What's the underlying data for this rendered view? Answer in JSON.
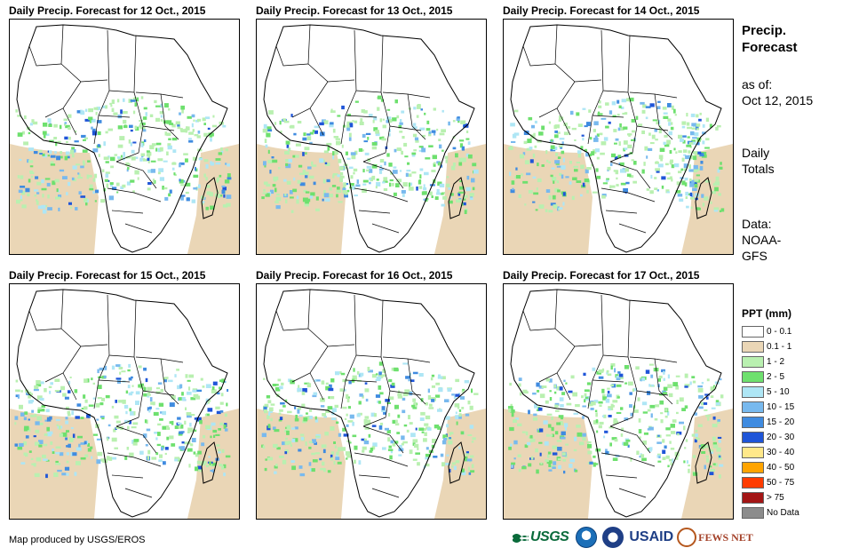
{
  "panels": [
    {
      "title": "Daily Precip. Forecast for 12 Oct., 2015"
    },
    {
      "title": "Daily Precip. Forecast for 13 Oct., 2015"
    },
    {
      "title": "Daily Precip. Forecast for 14 Oct., 2015"
    },
    {
      "title": "Daily Precip. Forecast for 15 Oct., 2015"
    },
    {
      "title": "Daily Precip. Forecast for 16 Oct., 2015"
    },
    {
      "title": "Daily Precip. Forecast for 17 Oct., 2015"
    }
  ],
  "sidebar": {
    "title_line1": "Precip.",
    "title_line2": "Forecast",
    "asof_line1": "as of:",
    "asof_line2": "Oct 12, 2015",
    "daily_line1": "Daily",
    "daily_line2": "Totals",
    "data_line1": "Data:",
    "data_line2": "NOAA-",
    "data_line3": "GFS"
  },
  "legend": {
    "title": "PPT (mm)",
    "items": [
      {
        "label": "0 - 0.1",
        "color": "#ffffff"
      },
      {
        "label": "0.1 - 1",
        "color": "#ead6b6"
      },
      {
        "label": "1 - 2",
        "color": "#b9f0b0"
      },
      {
        "label": "2 - 5",
        "color": "#6ee06e"
      },
      {
        "label": "5 - 10",
        "color": "#aee6f5"
      },
      {
        "label": "10 - 15",
        "color": "#78b9ee"
      },
      {
        "label": "15 - 20",
        "color": "#3f8be0"
      },
      {
        "label": "20 - 30",
        "color": "#1f55d8"
      },
      {
        "label": "30 - 40",
        "color": "#ffe88a"
      },
      {
        "label": "40 - 50",
        "color": "#ffa400"
      },
      {
        "label": "50 - 75",
        "color": "#ff3c00"
      },
      {
        "label": "> 75",
        "color": "#a31515"
      },
      {
        "label": "No Data",
        "color": "#8c8c8c"
      }
    ]
  },
  "credit": "Map produced by USGS/EROS",
  "logos": {
    "usgs": "USGS",
    "usaid": "USAID",
    "fews": "FEWS NET"
  }
}
